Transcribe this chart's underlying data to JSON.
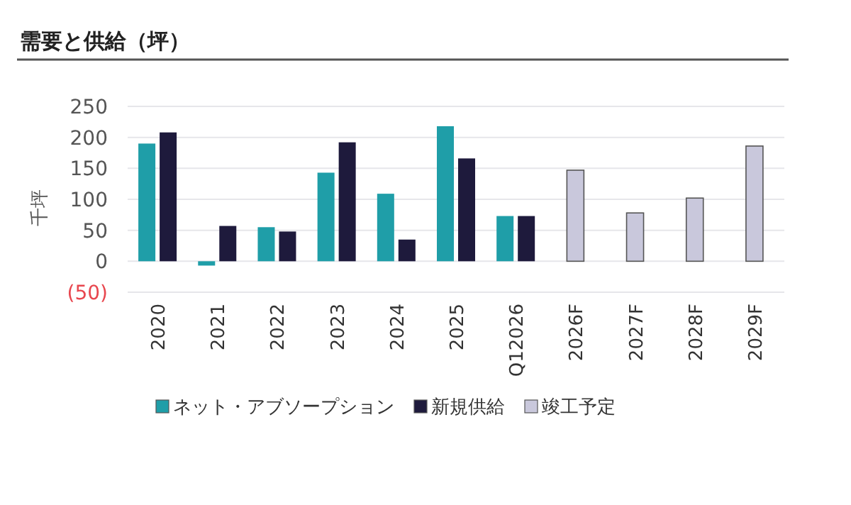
{
  "chart_data": {
    "type": "bar",
    "title": "需要と供給（坪）",
    "ylabel": "千坪",
    "categories": [
      "2020",
      "2021",
      "2022",
      "2023",
      "2024",
      "2025",
      "Q12026",
      "2026F",
      "2027F",
      "2028F",
      "2029F"
    ],
    "series": [
      {
        "name": "ネット・アブソープション",
        "color": "#1f9ea8",
        "values": [
          190,
          -7,
          55,
          143,
          109,
          218,
          73,
          null,
          null,
          null,
          null
        ]
      },
      {
        "name": "新規供給",
        "color": "#1e1a3c",
        "values": [
          208,
          57,
          48,
          192,
          35,
          166,
          73,
          null,
          null,
          null,
          null
        ]
      },
      {
        "name": "竣工予定",
        "color": "#c9c8dc",
        "values": [
          null,
          null,
          null,
          null,
          null,
          null,
          null,
          147,
          78,
          102,
          186
        ]
      }
    ],
    "ylim": [
      -50,
      250
    ],
    "yticks": [
      {
        "value": -50,
        "label": "(50)"
      },
      0,
      50,
      100,
      150,
      200,
      250
    ],
    "grid": "y",
    "legend": "bottom"
  }
}
